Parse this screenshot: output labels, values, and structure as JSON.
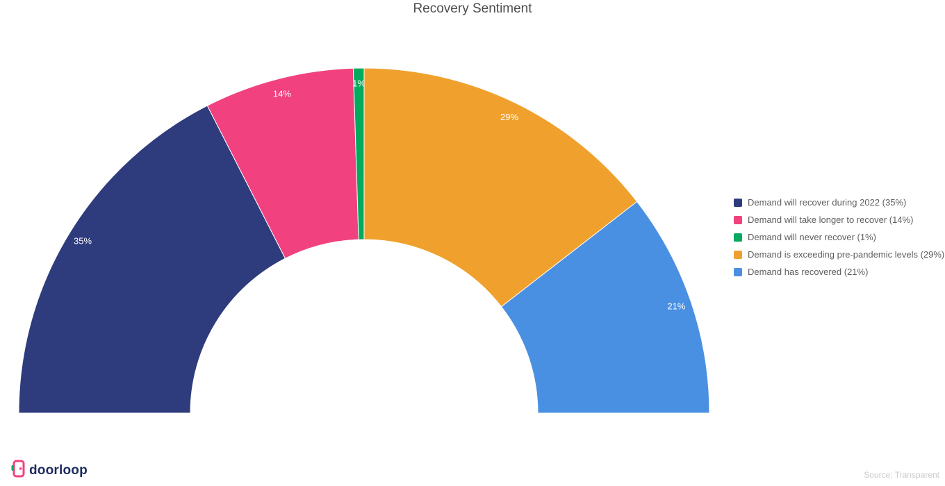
{
  "chart_data": {
    "type": "pie",
    "variant": "semi-circle-donut",
    "title": "Recovery Sentiment",
    "unit": "%",
    "start_angle": 180,
    "end_angle": 0,
    "legend_position": "right",
    "series": [
      {
        "name": "Demand will recover during 2022",
        "label": "Demand will recover during 2022 (35%)",
        "value": 35,
        "slice_label": "35%",
        "color": "#2e3b7c"
      },
      {
        "name": "Demand will take longer to recover",
        "label": "Demand will take longer to recover (14%)",
        "value": 14,
        "slice_label": "14%",
        "color": "#f1417f"
      },
      {
        "name": "Demand will never recover",
        "label": "Demand will never recover (1%)",
        "value": 1,
        "slice_label": "1%",
        "color": "#00ab5e"
      },
      {
        "name": "Demand is exceeding pre-pandemic levels",
        "label": "Demand is exceeding pre-pandemic levels (29%)",
        "value": 29,
        "slice_label": "29%",
        "color": "#f0a12d"
      },
      {
        "name": "Demand has recovered",
        "label": "Demand has recovered (21%)",
        "value": 21,
        "slice_label": "21%",
        "color": "#4a90e2"
      }
    ]
  },
  "footer": {
    "logo_text": "doorloop",
    "source": "Source: Transparent"
  }
}
